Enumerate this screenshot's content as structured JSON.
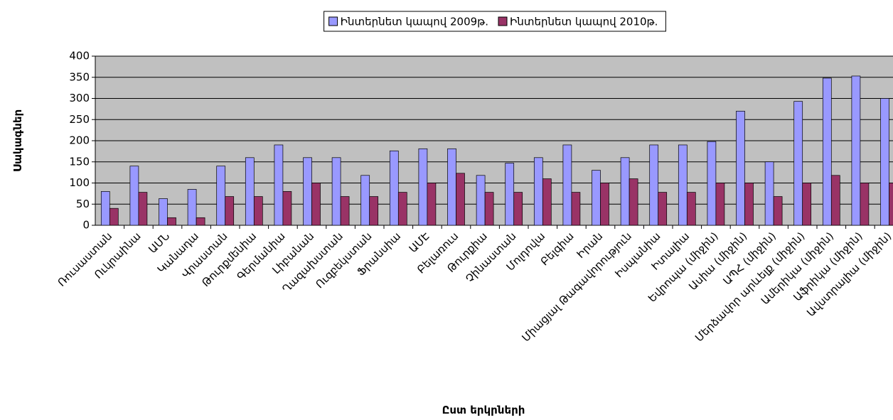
{
  "chart_data": {
    "type": "bar",
    "y_label": "Սակագներ",
    "x_label": "Ըստ երկրների",
    "categories": [
      "Ռուսաստան",
      "Ուկրաինա",
      "ԱՄՆ",
      "Կանադա",
      "Վրաստան",
      "Թուրքմենիա",
      "Գերմանիա",
      "Լիբանան",
      "Ղազախստան",
      "Ուզբեկստան",
      "Ֆրանսիա",
      "ԱՄԷ",
      "Բելառուս",
      "Թուրքիա",
      "Չինաստան",
      "Մոլդովա",
      "Բելգիա",
      "Իրան",
      "Միացյալ Թագավորություն",
      "Իսպանիա",
      "Իտալիա",
      "Եվրոպա (միջին)",
      "Ասիա  (միջին)",
      "ԱՊՀ (միջին)",
      "Մերձավոր արևելք (միջին)",
      "Ամերիկա (միջին)",
      "Աֆրիկա (միջին)",
      "Ավստրալիա (միջին)"
    ],
    "series": [
      {
        "name": "Ինտերնետ կապով 2009թ.",
        "color": "#9999ff",
        "values": [
          80,
          140,
          63,
          85,
          140,
          160,
          190,
          160,
          160,
          118,
          176,
          181,
          181,
          118,
          147,
          160,
          190,
          130,
          160,
          190,
          190,
          198,
          270,
          150,
          293,
          348,
          353,
          300
        ]
      },
      {
        "name": "Ինտերնետ կապով 2010թ.",
        "color": "#993366",
        "values": [
          40,
          78,
          18,
          18,
          68,
          68,
          80,
          100,
          68,
          68,
          78,
          100,
          123,
          78,
          78,
          110,
          78,
          100,
          110,
          78,
          78,
          100,
          100,
          68,
          100,
          118,
          100,
          100
        ]
      }
    ],
    "ylim": [
      0,
      400
    ],
    "yticks": [
      0,
      50,
      100,
      150,
      200,
      250,
      300,
      350,
      400
    ],
    "grid": true,
    "legend": "top"
  }
}
